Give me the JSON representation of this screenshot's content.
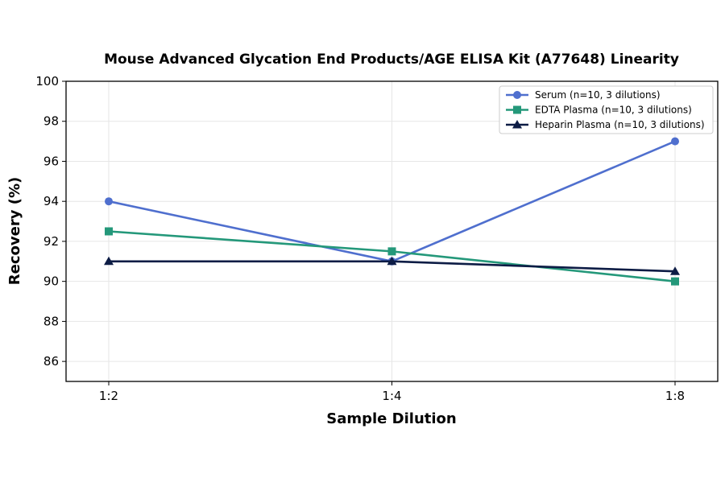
{
  "chart_data": {
    "type": "line",
    "title": "Mouse Advanced Glycation End Products/AGE ELISA Kit (A77648) Linearity",
    "xlabel": "Sample Dilution",
    "ylabel": "Recovery (%)",
    "categories": [
      "1:2",
      "1:4",
      "1:8"
    ],
    "ylim": [
      85,
      100
    ],
    "yticks": [
      86,
      88,
      90,
      92,
      94,
      96,
      98,
      100
    ],
    "grid": true,
    "legend_position": "top-right",
    "series": [
      {
        "name": "Serum (n=10, 3 dilutions)",
        "values": [
          94,
          91,
          97
        ],
        "color": "#4f6fce",
        "marker": "circle"
      },
      {
        "name": "EDTA Plasma (n=10, 3 dilutions)",
        "values": [
          92.5,
          91.5,
          90
        ],
        "color": "#24987a",
        "marker": "square"
      },
      {
        "name": "Heparin Plasma (n=10, 3 dilutions)",
        "values": [
          91,
          91,
          90.5
        ],
        "color": "#0d1c45",
        "marker": "triangle"
      }
    ]
  }
}
